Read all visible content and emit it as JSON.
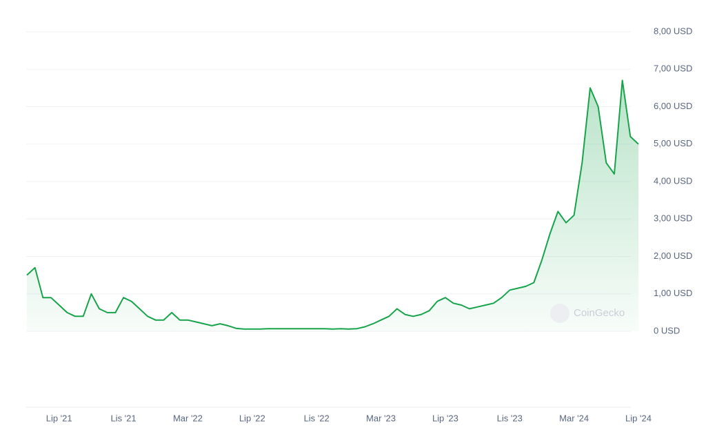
{
  "chart_data": {
    "type": "line",
    "categories": [
      null,
      null,
      null,
      null,
      "Lip '21",
      null,
      null,
      null,
      null,
      null,
      null,
      null,
      "Lis '21",
      null,
      null,
      null,
      null,
      null,
      null,
      null,
      "Mar '22",
      null,
      null,
      null,
      null,
      null,
      null,
      null,
      "Lip '22",
      null,
      null,
      null,
      null,
      null,
      null,
      null,
      "Lis '22",
      null,
      null,
      null,
      null,
      null,
      null,
      null,
      "Mar '23",
      null,
      null,
      null,
      null,
      null,
      null,
      null,
      "Lip '23",
      null,
      null,
      null,
      null,
      null,
      null,
      null,
      "Lis '23",
      null,
      null,
      null,
      null,
      null,
      null,
      null,
      "Mar '24",
      null,
      null,
      null,
      null,
      null,
      null,
      null,
      "Lip '24"
    ],
    "values": [
      1.5,
      1.7,
      0.9,
      0.9,
      0.7,
      0.5,
      0.4,
      0.4,
      1.0,
      0.6,
      0.5,
      0.5,
      0.9,
      0.8,
      0.6,
      0.4,
      0.3,
      0.3,
      0.5,
      0.3,
      0.3,
      0.25,
      0.2,
      0.15,
      0.2,
      0.15,
      0.08,
      0.06,
      0.06,
      0.06,
      0.07,
      0.07,
      0.07,
      0.07,
      0.07,
      0.07,
      0.07,
      0.07,
      0.06,
      0.07,
      0.06,
      0.07,
      0.12,
      0.2,
      0.3,
      0.4,
      0.6,
      0.45,
      0.4,
      0.45,
      0.55,
      0.8,
      0.9,
      0.75,
      0.7,
      0.6,
      0.65,
      0.7,
      0.75,
      0.9,
      1.1,
      1.15,
      1.2,
      1.3,
      1.9,
      2.6,
      3.2,
      2.9,
      3.1,
      4.5,
      6.5,
      6.0,
      4.5,
      4.2,
      6.7,
      5.2,
      5.0
    ],
    "color": "#16a34a",
    "ylim": [
      0,
      8
    ],
    "yticks": [
      {
        "value": 0,
        "label": "0 USD"
      },
      {
        "value": 1,
        "label": "1,00 USD"
      },
      {
        "value": 2,
        "label": "2,00 USD"
      },
      {
        "value": 3,
        "label": "3,00 USD"
      },
      {
        "value": 4,
        "label": "4,00 USD"
      },
      {
        "value": 5,
        "label": "5,00 USD"
      },
      {
        "value": 6,
        "label": "6,00 USD"
      },
      {
        "value": 7,
        "label": "7,00 USD"
      },
      {
        "value": 8,
        "label": "8,00 USD"
      }
    ],
    "grid": true,
    "watermark": "CoinGecko"
  }
}
